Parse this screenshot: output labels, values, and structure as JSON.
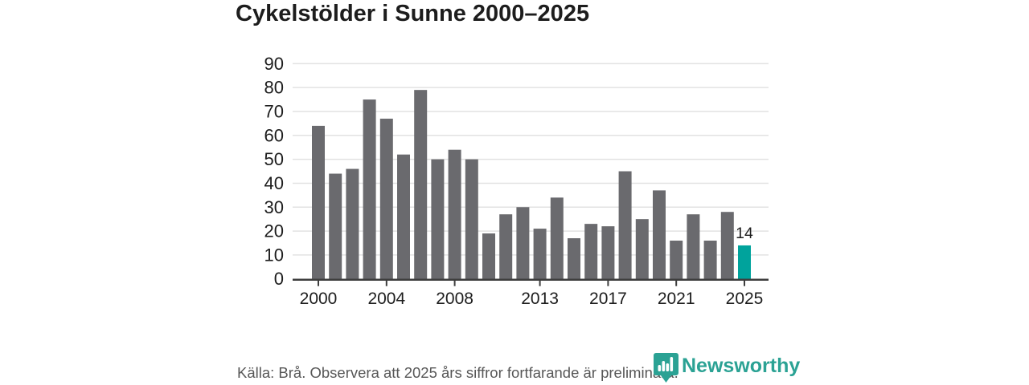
{
  "title": "Cykelstölder i Sunne 2000–2025",
  "footer": {
    "source_note": "Källa: Brå. Observera att 2025 års siffror fortfarande är preliminära.",
    "brand": "Newsworthy"
  },
  "colors": {
    "bar": "#6a6a6e",
    "highlight": "#00a39c",
    "grid": "#e2e2e2",
    "axis": "#3d3d3d",
    "text": "#1d1d1d",
    "muted_text": "#575757",
    "brand": "#2ba294",
    "logo_bars": "#ffffff"
  },
  "chart_data": {
    "type": "bar",
    "title": "Cykelstölder i Sunne 2000–2025",
    "x": [
      2000,
      2001,
      2002,
      2003,
      2004,
      2005,
      2006,
      2007,
      2008,
      2009,
      2010,
      2011,
      2012,
      2013,
      2014,
      2015,
      2016,
      2017,
      2018,
      2019,
      2020,
      2021,
      2022,
      2023,
      2024,
      2025
    ],
    "values": [
      64,
      44,
      46,
      75,
      67,
      52,
      79,
      50,
      54,
      50,
      19,
      27,
      30,
      21,
      34,
      17,
      23,
      22,
      45,
      25,
      37,
      16,
      27,
      16,
      28,
      14
    ],
    "highlight_year": 2025,
    "annotations": [
      {
        "year": 2025,
        "label": "14"
      }
    ],
    "ylim": [
      0,
      90
    ],
    "y_ticks": [
      0,
      10,
      20,
      30,
      40,
      50,
      60,
      70,
      80,
      90
    ],
    "x_ticks": [
      2000,
      2004,
      2008,
      2013,
      2017,
      2021,
      2025
    ],
    "grid": "horizontal",
    "legend": false,
    "xlabel": "",
    "ylabel": ""
  }
}
